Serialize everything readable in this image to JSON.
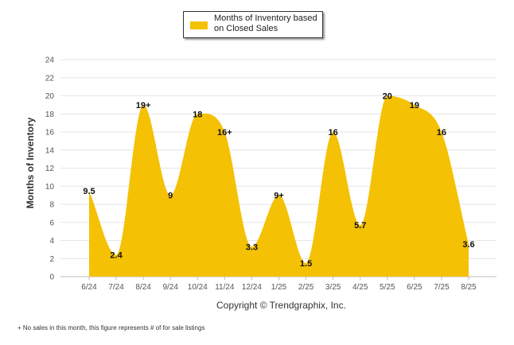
{
  "chart_data": {
    "type": "area",
    "categories": [
      "6/24",
      "7/24",
      "8/24",
      "9/24",
      "10/24",
      "11/24",
      "12/24",
      "1/25",
      "2/25",
      "3/25",
      "4/25",
      "5/25",
      "6/25",
      "7/25",
      "8/25"
    ],
    "series": [
      {
        "name": "Months of Inventory based on Closed Sales",
        "values": [
          9.5,
          2.4,
          19,
          9,
          18,
          16,
          3.3,
          9,
          1.5,
          16,
          5.7,
          20,
          19,
          16,
          3.6
        ],
        "labels": [
          "9.5",
          "2.4",
          "19+",
          "9",
          "18",
          "16+",
          "3.3",
          "9+",
          "1.5",
          "16",
          "5.7",
          "20",
          "19",
          "16",
          "3.6"
        ],
        "color": "#F5C104"
      }
    ],
    "ylabel": "Months of Inventory",
    "ylim": [
      0,
      24
    ],
    "yticks": [
      "0",
      "2",
      "4",
      "6",
      "8",
      "10",
      "12",
      "14",
      "16",
      "18",
      "20",
      "22",
      "24"
    ],
    "grid": true,
    "legend_position": "top-center"
  },
  "legend": {
    "label": "Months of Inventory based on Closed Sales"
  },
  "copyright": "Copyright © Trendgraphix, Inc.",
  "footnote": "+  No sales in this month, this figure represents # of for sale listings"
}
